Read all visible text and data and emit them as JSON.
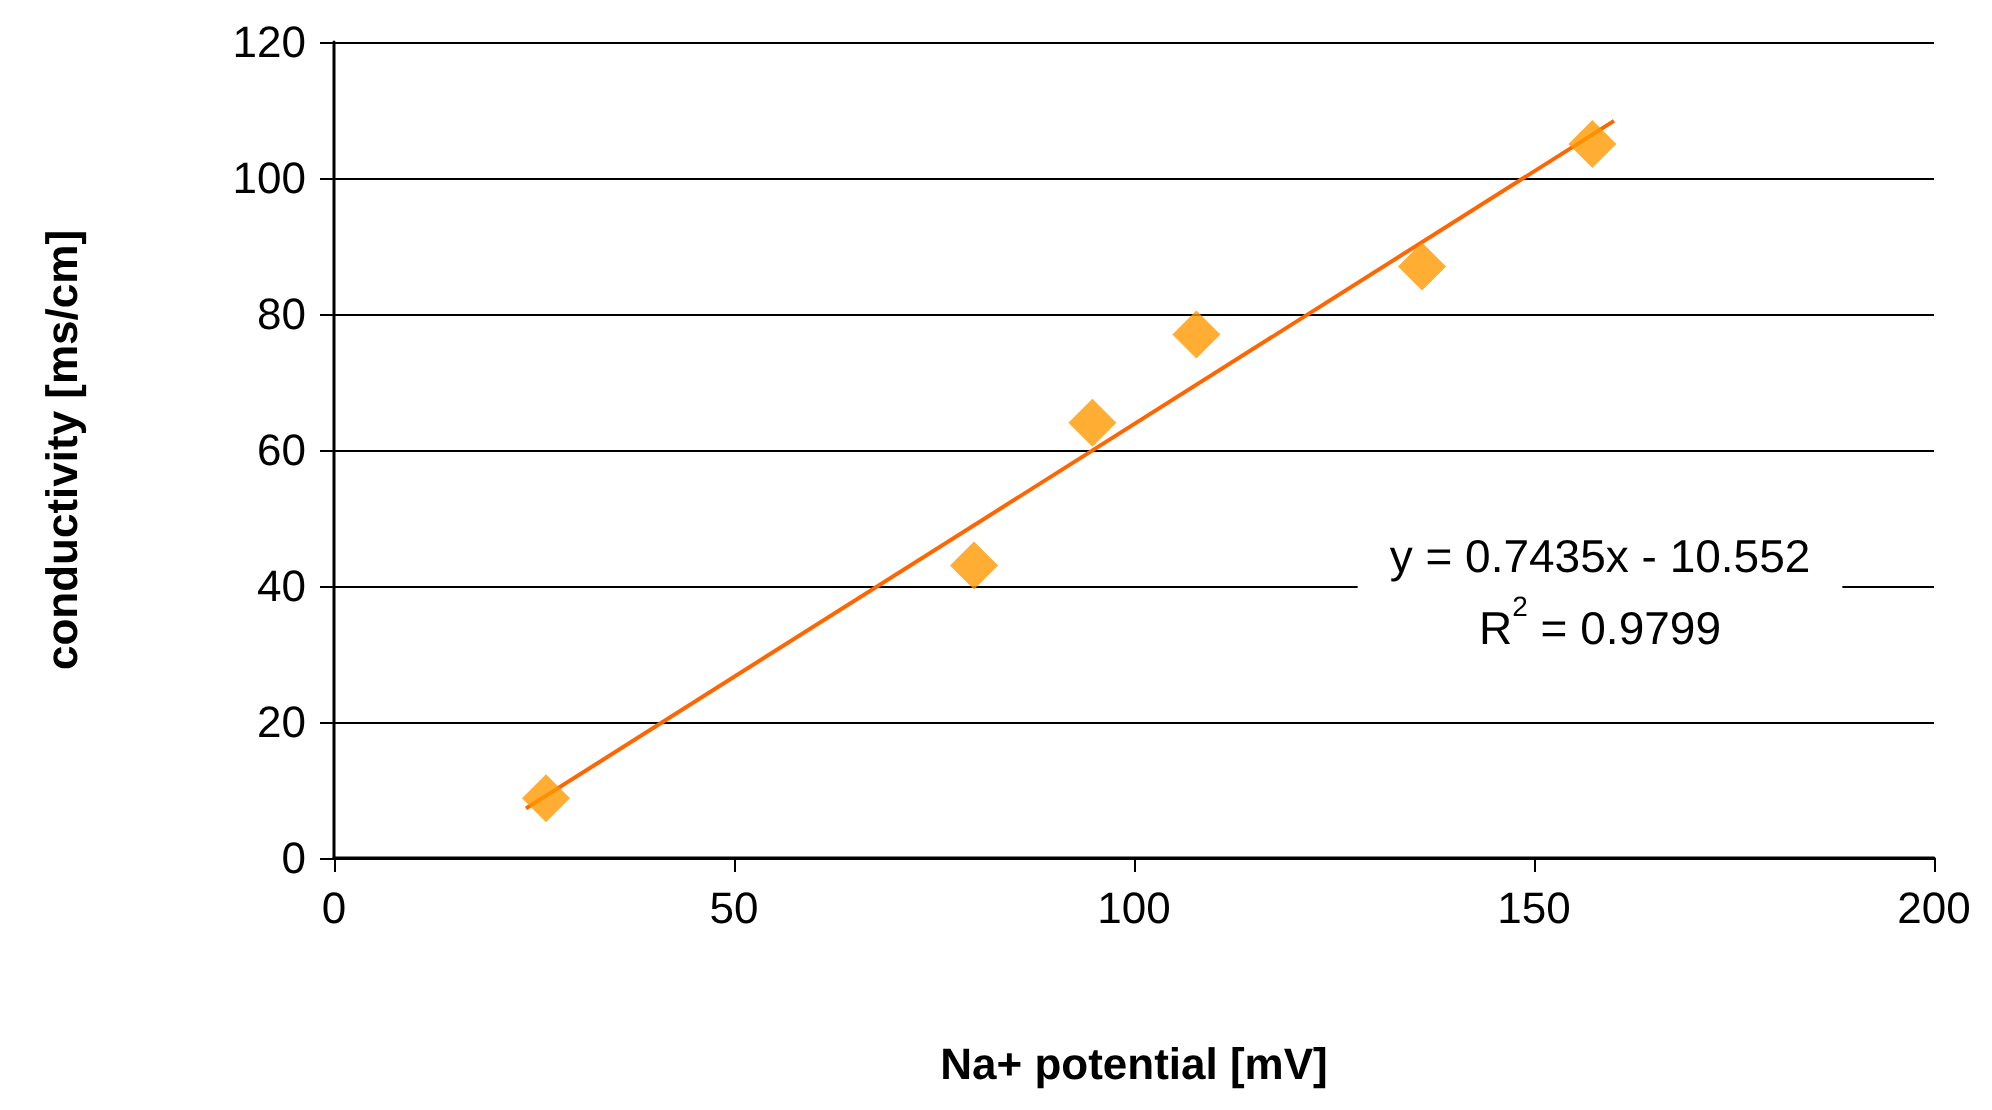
{
  "chart_data": {
    "type": "scatter",
    "xlabel": "Na+ potential [mV]",
    "ylabel": "conductivity [ms/cm]",
    "xlim": [
      0,
      200
    ],
    "xticks": [
      0,
      50,
      100,
      150,
      200
    ],
    "ylim": [
      0,
      120
    ],
    "yticks": [
      0,
      20,
      40,
      60,
      80,
      100,
      120
    ],
    "grid": "y",
    "marker": "diamond",
    "series": [
      {
        "color": "#ff9900",
        "x": [
          26.5,
          80,
          94.8,
          107.8,
          136,
          157.3
        ],
        "values": [
          8.8,
          43,
          64,
          77,
          87,
          105
        ]
      },
      {
        "type": "line",
        "color": "#ff6600",
        "marker": "none",
        "line_style": "solid",
        "x": [
          24,
          160
        ],
        "values": [
          7.3,
          108.4
        ]
      }
    ],
    "annotations": [
      "y = 0.7435x - 10.552",
      "R$^{2}$ = 0.9799"
    ]
  }
}
